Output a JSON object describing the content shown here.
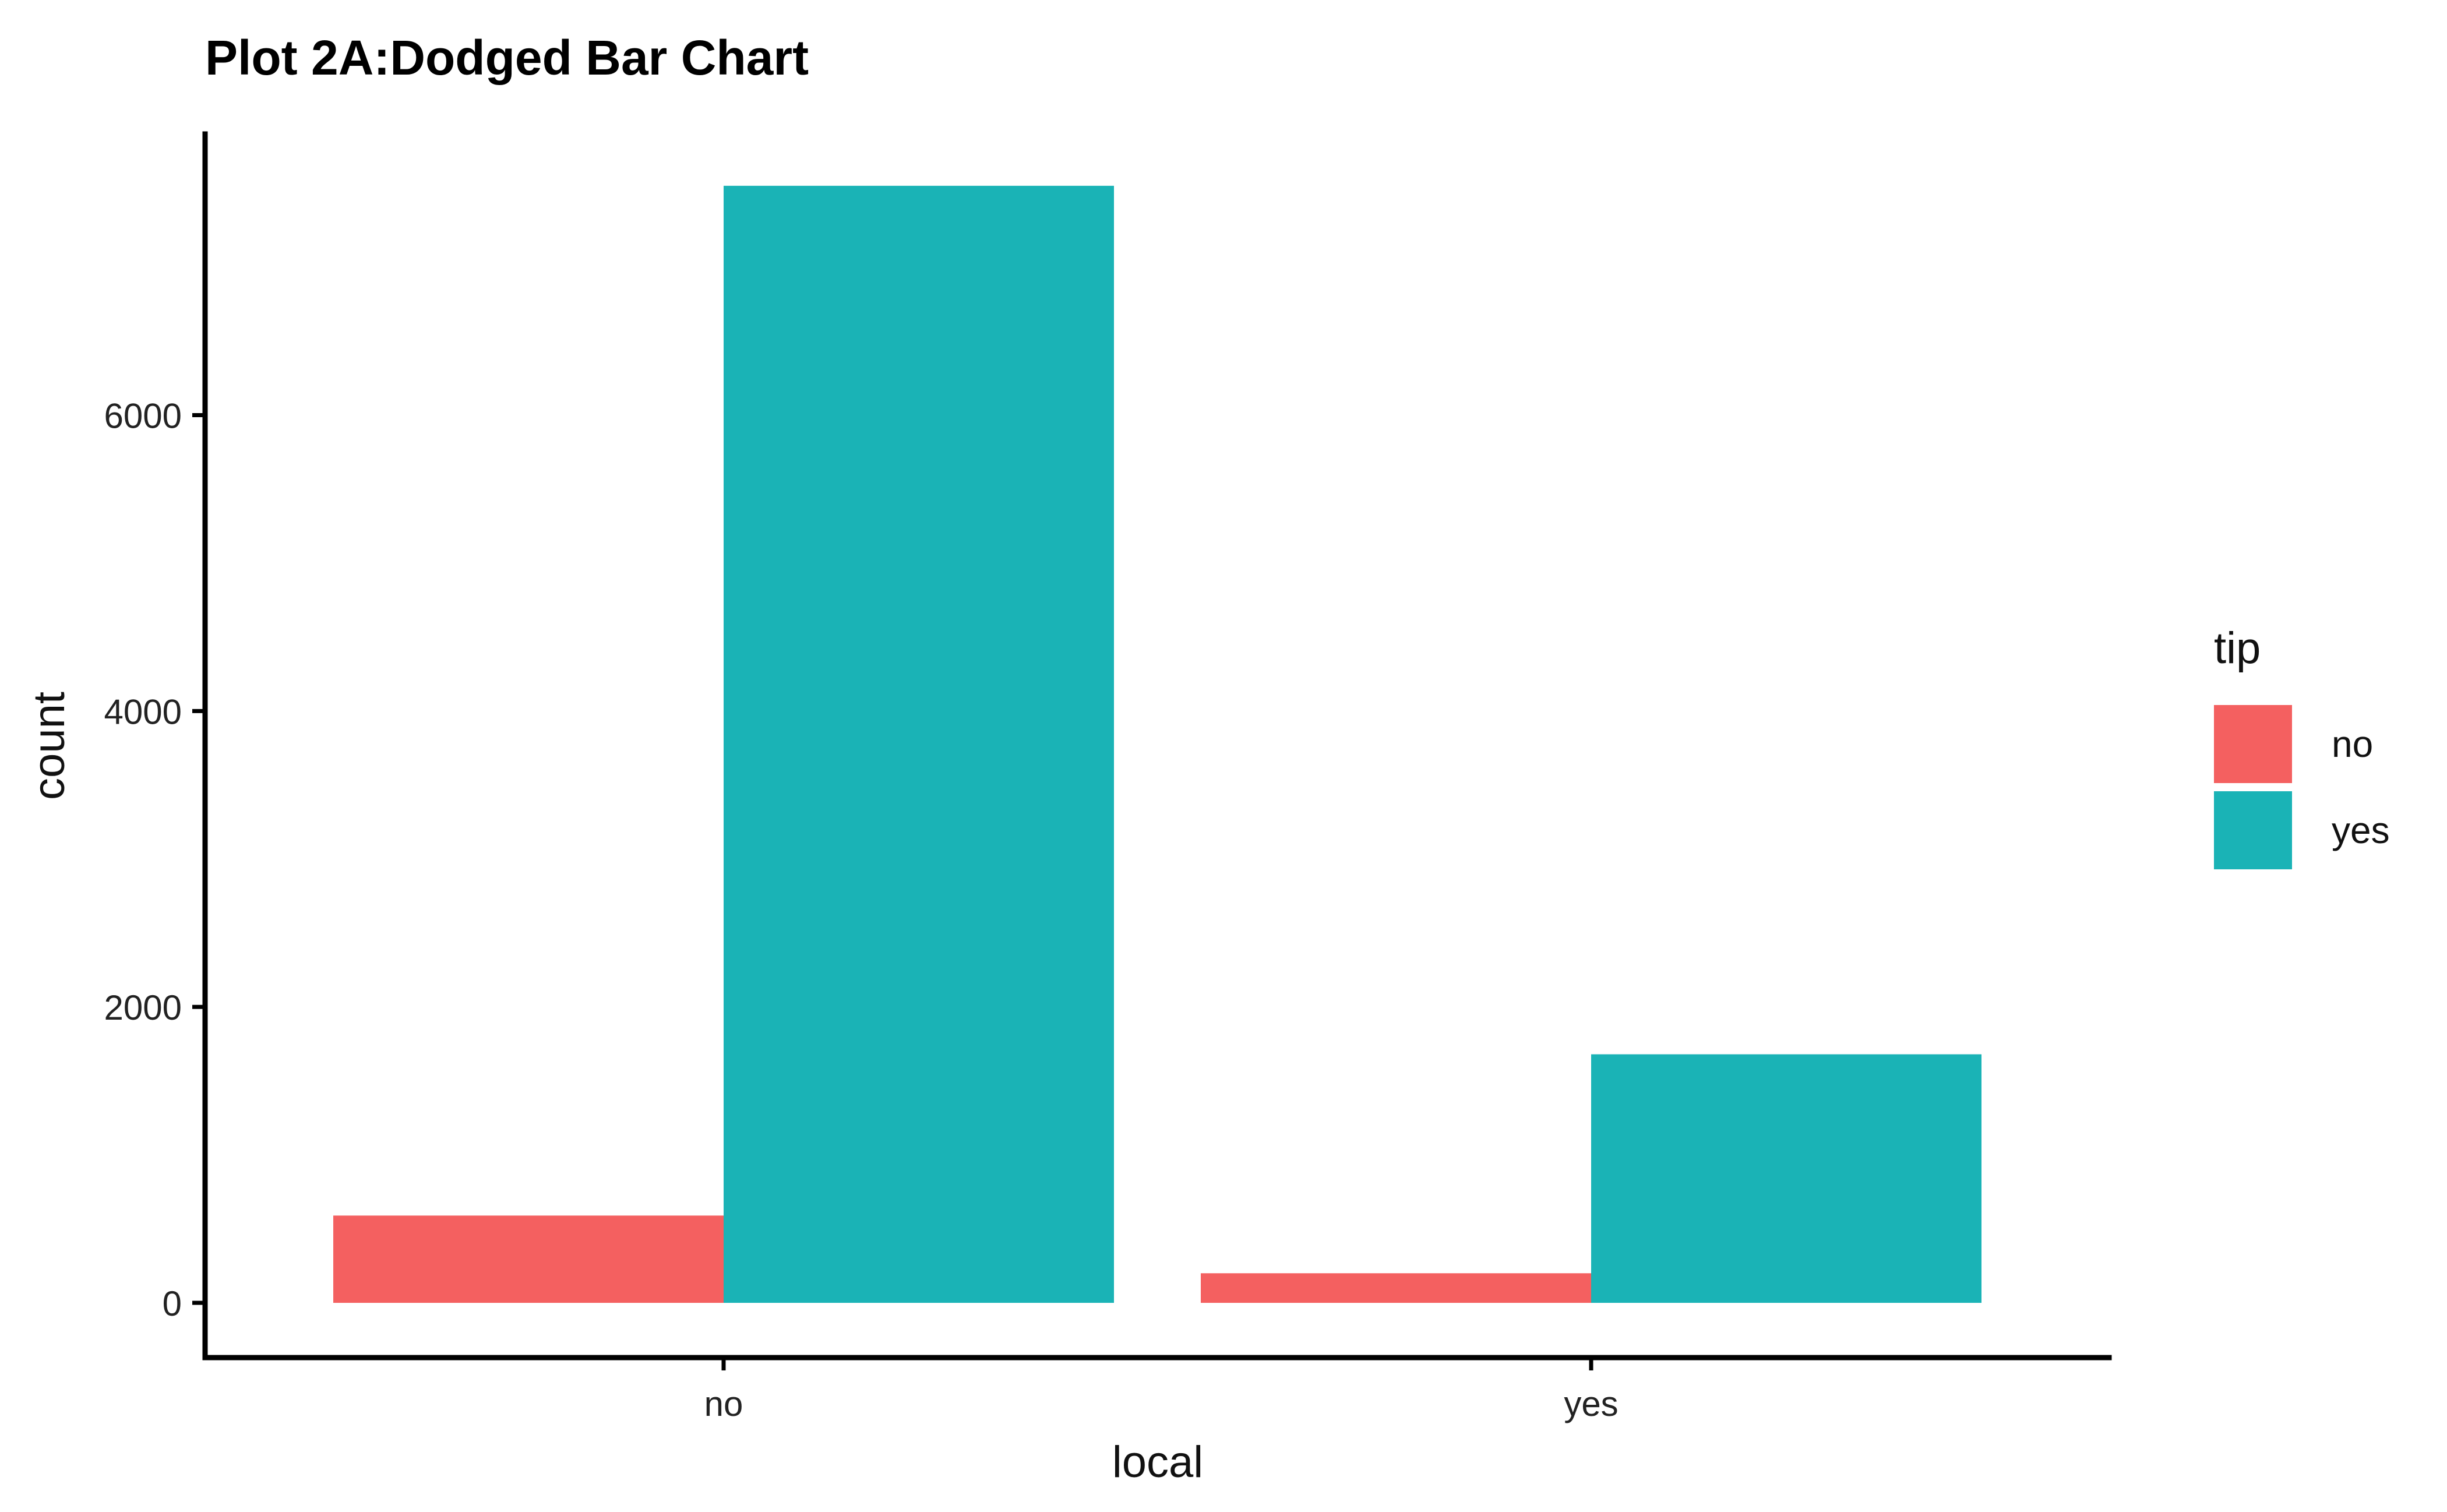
{
  "chart_data": {
    "type": "bar",
    "title": "Plot 2A:Dodged Bar Chart",
    "xlabel": "local",
    "ylabel": "count",
    "categories": [
      "no",
      "yes"
    ],
    "series": [
      {
        "name": "no",
        "values": [
          590,
          200
        ]
      },
      {
        "name": "yes",
        "values": [
          7550,
          1680
        ]
      }
    ],
    "ylim": [
      -370,
      7900
    ],
    "yticks": [
      0,
      2000,
      4000,
      6000
    ],
    "grid": false,
    "legend": {
      "title": "tip",
      "position": "right",
      "entries": [
        "no",
        "yes"
      ]
    },
    "colors": {
      "no": "#F46060",
      "yes": "#1AB3B6",
      "axis": "#000000"
    }
  }
}
